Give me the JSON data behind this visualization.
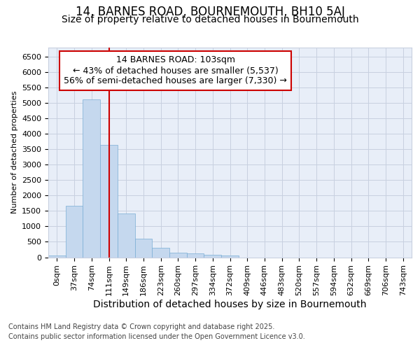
{
  "title1": "14, BARNES ROAD, BOURNEMOUTH, BH10 5AJ",
  "title2": "Size of property relative to detached houses in Bournemouth",
  "xlabel": "Distribution of detached houses by size in Bournemouth",
  "ylabel": "Number of detached properties",
  "bar_labels": [
    "0sqm",
    "37sqm",
    "74sqm",
    "111sqm",
    "149sqm",
    "186sqm",
    "223sqm",
    "260sqm",
    "297sqm",
    "334sqm",
    "372sqm",
    "409sqm",
    "446sqm",
    "483sqm",
    "520sqm",
    "557sqm",
    "594sqm",
    "632sqm",
    "669sqm",
    "706sqm",
    "743sqm"
  ],
  "bar_values": [
    55,
    1660,
    5120,
    3630,
    1420,
    610,
    310,
    155,
    120,
    75,
    60,
    0,
    0,
    0,
    0,
    0,
    0,
    0,
    0,
    0,
    0
  ],
  "bar_color": "#c5d8ee",
  "bar_edgecolor": "#7aadd4",
  "vline_color": "#cc0000",
  "annotation_text": "14 BARNES ROAD: 103sqm\n← 43% of detached houses are smaller (5,537)\n56% of semi-detached houses are larger (7,330) →",
  "annotation_box_color": "white",
  "annotation_box_edgecolor": "#cc0000",
  "grid_color": "#c8d0e0",
  "background_color": "#e8eef8",
  "ylim": [
    0,
    6800
  ],
  "yticks": [
    0,
    500,
    1000,
    1500,
    2000,
    2500,
    3000,
    3500,
    4000,
    4500,
    5000,
    5500,
    6000,
    6500
  ],
  "footer1": "Contains HM Land Registry data © Crown copyright and database right 2025.",
  "footer2": "Contains public sector information licensed under the Open Government Licence v3.0.",
  "title1_fontsize": 12,
  "title2_fontsize": 10,
  "xlabel_fontsize": 10,
  "ylabel_fontsize": 8,
  "tick_fontsize": 8,
  "annotation_fontsize": 9,
  "footer_fontsize": 7
}
